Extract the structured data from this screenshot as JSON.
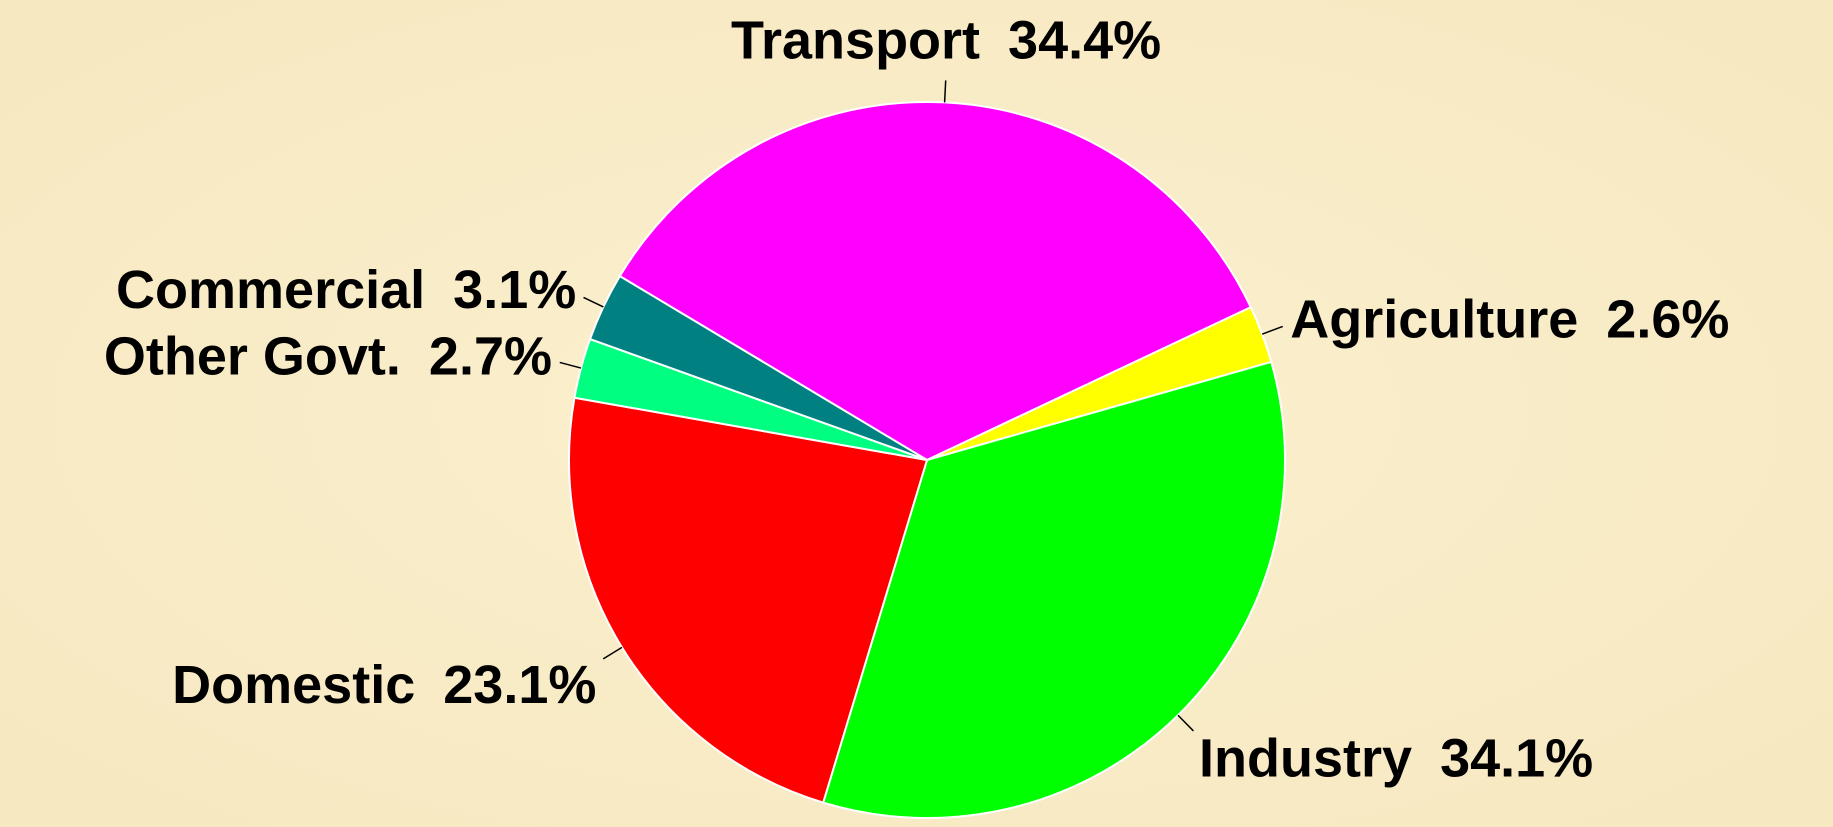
{
  "chart_data": {
    "type": "pie",
    "categories": [
      "Transport",
      "Agriculture",
      "Industry",
      "Domestic",
      "Other Govt.",
      "Commercial"
    ],
    "values": [
      34.4,
      2.6,
      34.1,
      23.1,
      2.7,
      3.1
    ],
    "value_labels": [
      "34.4%",
      "2.6%",
      "34.1%",
      "23.1%",
      "2.7%",
      "3.1%"
    ],
    "colors": [
      "#ff00ff",
      "#ffff00",
      "#00ff00",
      "#ff0000",
      "#00ff80",
      "#008080"
    ]
  }
}
